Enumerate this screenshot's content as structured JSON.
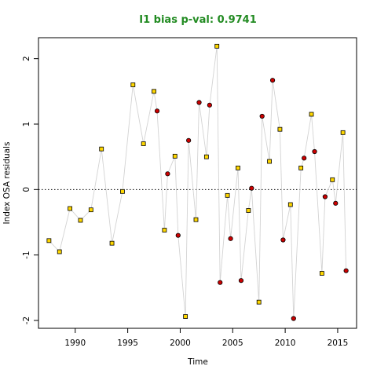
{
  "chart_data": {
    "type": "scatter",
    "title": "I1 bias p-val: 0.9741",
    "title_color": "#228b22",
    "xlabel": "Time",
    "ylabel": "Index OSA residuals",
    "xlim": [
      1986.5,
      2016.8
    ],
    "ylim": [
      -2.12,
      2.32
    ],
    "xticks": [
      1990,
      1995,
      2000,
      2005,
      2010,
      2015
    ],
    "yticks": [
      -2,
      -1,
      0,
      1,
      2
    ],
    "reference_line": 0,
    "connector_color": "#d3d3d3",
    "series": [
      {
        "marker": "square",
        "fill": "#ffd700",
        "points": [
          [
            1987.5,
            -0.78
          ],
          [
            1988.5,
            -0.95
          ],
          [
            1989.5,
            -0.29
          ],
          [
            1990.5,
            -0.47
          ],
          [
            1991.5,
            -0.31
          ],
          [
            1992.5,
            0.62
          ],
          [
            1993.5,
            -0.82
          ],
          [
            1994.5,
            -0.03
          ],
          [
            1995.5,
            1.6
          ],
          [
            1996.5,
            0.7
          ],
          [
            1997.5,
            1.5
          ],
          [
            1998.5,
            -0.62
          ],
          [
            1999.5,
            0.51
          ],
          [
            2000.5,
            -1.94
          ],
          [
            2001.5,
            -0.46
          ],
          [
            2002.5,
            0.5
          ],
          [
            2003.5,
            2.19
          ],
          [
            2004.5,
            -0.09
          ],
          [
            2005.5,
            0.33
          ],
          [
            2006.5,
            -0.32
          ],
          [
            2007.5,
            -1.72
          ],
          [
            2008.5,
            0.43
          ],
          [
            2009.5,
            0.92
          ],
          [
            2010.5,
            -0.23
          ],
          [
            2011.5,
            0.33
          ],
          [
            2012.5,
            1.15
          ],
          [
            2013.5,
            -1.28
          ],
          [
            2014.5,
            0.15
          ],
          [
            2015.5,
            0.87
          ]
        ]
      },
      {
        "marker": "circle",
        "fill": "#cc0000",
        "points": [
          [
            1997.8,
            1.2
          ],
          [
            1998.8,
            0.24
          ],
          [
            1999.8,
            -0.7
          ],
          [
            2000.8,
            0.75
          ],
          [
            2001.8,
            1.33
          ],
          [
            2002.8,
            1.29
          ],
          [
            2003.8,
            -1.42
          ],
          [
            2004.8,
            -0.75
          ],
          [
            2005.8,
            -1.39
          ],
          [
            2006.8,
            0.02
          ],
          [
            2007.8,
            1.12
          ],
          [
            2008.8,
            1.67
          ],
          [
            2009.8,
            -0.77
          ],
          [
            2010.8,
            -1.97
          ],
          [
            2011.8,
            0.48
          ],
          [
            2012.8,
            0.58
          ],
          [
            2013.8,
            -0.11
          ],
          [
            2014.8,
            -0.21
          ],
          [
            2015.8,
            -1.24
          ]
        ]
      }
    ]
  }
}
